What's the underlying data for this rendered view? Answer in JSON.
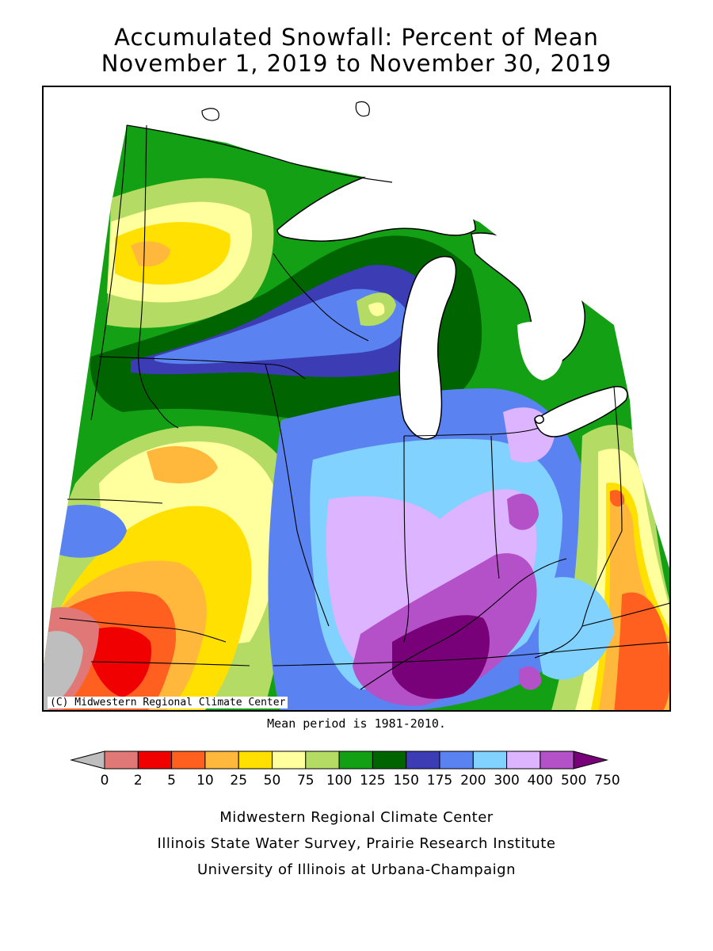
{
  "title": {
    "line1": "Accumulated Snowfall: Percent of Mean",
    "line2": "November 1, 2019 to November 30, 2019"
  },
  "copyright": "(C) Midwestern Regional Climate Center",
  "mean_period": "Mean period is 1981-2010.",
  "legend": {
    "ticks": [
      "0",
      "2",
      "5",
      "10",
      "25",
      "50",
      "75",
      "100",
      "125",
      "150",
      "175",
      "200",
      "300",
      "400",
      "500",
      "750"
    ],
    "colors": [
      "#bebebe",
      "#e07878",
      "#f00000",
      "#ff6020",
      "#ffb83c",
      "#ffe000",
      "#ffff9e",
      "#b4dc64",
      "#14a014",
      "#006400",
      "#3c3cb4",
      "#5a82f0",
      "#82d2ff",
      "#dcb4ff",
      "#b450c8",
      "#780078"
    ]
  },
  "credits": {
    "line1": "Midwestern Regional Climate Center",
    "line2": "Illinois State Water Survey, Prairie Research Institute",
    "line3": "University of Illinois at Urbana-Champaign"
  },
  "map": {
    "land_background": "#14a014",
    "water_color": "#ffffff",
    "boundary_color": "#000000"
  }
}
